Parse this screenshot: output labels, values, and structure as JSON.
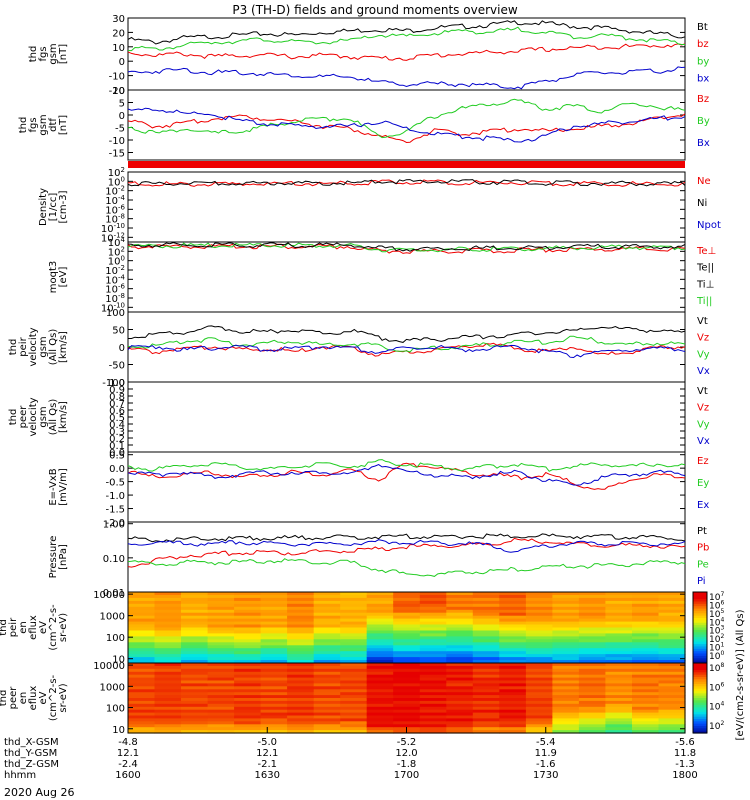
{
  "title": "P3 (TH-D) fields and ground moments overview",
  "date_label": "2020 Aug 26",
  "colors": {
    "black": "#000000",
    "red": "#ee0000",
    "green": "#22cc22",
    "blue": "#0000cc"
  },
  "time_axis": {
    "start": 1600,
    "end": 1800,
    "rows": [
      {
        "label": "thd_X-GSM",
        "values": [
          "-4.8",
          "-5.0",
          "-5.2",
          "-5.4",
          "-5.6"
        ]
      },
      {
        "label": "thd_Y-GSM",
        "values": [
          "12.1",
          "12.1",
          "12.0",
          "11.9",
          "11.8"
        ]
      },
      {
        "label": "thd_Z-GSM",
        "values": [
          "-2.4",
          "-2.1",
          "-1.8",
          "-1.6",
          "-1.3"
        ]
      },
      {
        "label": "hhmm",
        "values": [
          "1600",
          "1630",
          "1700",
          "1730",
          "1800"
        ]
      }
    ]
  },
  "top_tick_labels": [
    "-4.8",
    "-5.0",
    "-5.2",
    "-5.4",
    "-5.6"
  ],
  "colorbar": {
    "label": "[eV/(cm2-s-sr-eV)] (All Qs)",
    "upper_ticks": [
      "10^7",
      "10^6",
      "10^5",
      "10^4",
      "10^3",
      "10^2",
      "10^1",
      "10^0"
    ],
    "lower_ticks": [
      "10^8",
      "10^6",
      "10^4",
      "10^2"
    ]
  },
  "chart_data": [
    {
      "type": "line",
      "title": "thd fgs gsm [nT]",
      "ylabel_lines": [
        "thd",
        "fgs",
        "gsm",
        "[nT]"
      ],
      "ylim": [
        -20,
        30
      ],
      "yticks": [
        "30",
        "20",
        "10",
        "0",
        "-10",
        "-20"
      ],
      "yvals": [
        30,
        20,
        10,
        0,
        -10,
        -20
      ],
      "legend": [
        "Bt",
        "bz",
        "by",
        "bx"
      ],
      "series": [
        {
          "name": "Bt",
          "color": "black",
          "values": [
            16,
            14,
            17,
            18,
            19,
            20,
            19,
            21,
            22,
            23,
            22,
            24,
            25,
            26,
            28,
            27,
            25,
            24,
            22,
            20,
            18
          ]
        },
        {
          "name": "bz",
          "color": "red",
          "values": [
            7,
            5,
            6,
            4,
            5,
            5,
            4,
            5,
            4,
            3,
            3,
            5,
            6,
            7,
            8,
            9,
            10,
            11,
            11,
            12,
            12
          ]
        },
        {
          "name": "by",
          "color": "green",
          "values": [
            10,
            9,
            12,
            14,
            15,
            16,
            14,
            14,
            15,
            19,
            18,
            20,
            22,
            21,
            23,
            21,
            18,
            19,
            17,
            15,
            13
          ]
        },
        {
          "name": "bx",
          "color": "blue",
          "values": [
            -7,
            -6,
            -5,
            -7,
            -7,
            -8,
            -9,
            -10,
            -10,
            -14,
            -15,
            -15,
            -15,
            -16,
            -17,
            -13,
            -9,
            -7,
            -7,
            -6,
            -4
          ]
        }
      ]
    },
    {
      "type": "line",
      "title": "thd fgs gsm dtf [nT]",
      "ylabel_lines": [
        "thd",
        "fgs",
        "gsm",
        "dtf",
        "[nT]"
      ],
      "ylim": [
        -18,
        10
      ],
      "yticks": [
        "10",
        "5",
        "0",
        "-5",
        "-10",
        "-15"
      ],
      "yvals": [
        10,
        5,
        0,
        -5,
        -10,
        -15
      ],
      "legend": [
        "Bz",
        "By",
        "Bx"
      ],
      "series": [
        {
          "name": "Bz",
          "color": "red",
          "values": [
            -2,
            -4,
            -3,
            -1,
            0,
            -1,
            -2,
            -4,
            -5,
            -8,
            -10,
            -6,
            -7,
            -6,
            -5,
            -6,
            -5,
            -4,
            -3,
            -1,
            1
          ]
        },
        {
          "name": "By",
          "color": "green",
          "values": [
            -4,
            -7,
            -5,
            -7,
            -6,
            -4,
            -2,
            -1,
            -1,
            -8,
            -6,
            0,
            3,
            5,
            6,
            3,
            4,
            2,
            5,
            4,
            2
          ]
        },
        {
          "name": "Bx",
          "color": "blue",
          "values": [
            2,
            3,
            1,
            1,
            -2,
            -3,
            -4,
            -4,
            -4,
            -2,
            -5,
            -7,
            -8,
            -9,
            -10,
            -8,
            -4,
            -3,
            -2,
            -1,
            0
          ]
        }
      ]
    },
    {
      "type": "line",
      "title": "Density [1/cc] [cm-3]",
      "ylabel_lines": [
        "Density",
        "[1/cc]",
        "[cm-3]"
      ],
      "ylim_log": [
        -13,
        2
      ],
      "yticks": [
        "10^2",
        "10^0",
        "10^-2",
        "10^-4",
        "10^-6",
        "10^-8",
        "10^-10",
        "10^-12"
      ],
      "yvals": [
        2,
        0,
        -2,
        -4,
        -6,
        -8,
        -10,
        -12
      ],
      "legend": [
        "Ne",
        "Ni",
        "Npot"
      ],
      "series": [
        {
          "name": "Ne",
          "color": "red",
          "values": [
            -0.3,
            -0.3,
            -0.3,
            -0.3,
            -0.3,
            -0.2,
            -0.2,
            -0.2,
            -0.2,
            0.1,
            0.1,
            0.1,
            0.0,
            0.0,
            0.0,
            -0.2,
            -0.2,
            -0.3,
            -0.3,
            -0.4,
            -0.4
          ]
        },
        {
          "name": "Ni",
          "color": "black",
          "values": [
            -0.2,
            -0.2,
            -0.2,
            -0.2,
            -0.2,
            -0.1,
            -0.1,
            -0.1,
            -0.1,
            0.2,
            0.2,
            0.2,
            0.1,
            0.1,
            0.1,
            -0.1,
            -0.1,
            -0.2,
            -0.2,
            -0.3,
            -0.3
          ]
        }
      ]
    },
    {
      "type": "line",
      "title": "moqt3 [eV]",
      "ylabel_lines": [
        "moqt3",
        "[eV]"
      ],
      "ylim_log": [
        -11,
        4
      ],
      "yticks": [
        "10^4",
        "10^2",
        "10^0",
        "10^-2",
        "10^-4",
        "10^-6",
        "10^-8",
        "10^-10"
      ],
      "yvals": [
        4,
        2,
        0,
        -2,
        -4,
        -6,
        -8,
        -10
      ],
      "legend": [
        "Te⊥",
        "Te||",
        "Ti⊥",
        "Ti||"
      ],
      "series": [
        {
          "name": "Te⊥",
          "color": "red",
          "values": [
            3.3,
            3.3,
            3.3,
            3.3,
            3.3,
            3.3,
            3.3,
            3.3,
            3.3,
            2.4,
            2.3,
            2.3,
            2.4,
            2.4,
            2.5,
            2.6,
            2.7,
            2.8,
            2.8,
            2.8,
            2.8
          ]
        },
        {
          "name": "Ti||",
          "color": "green",
          "values": [
            3.5,
            3.5,
            3.5,
            3.5,
            3.5,
            3.5,
            3.5,
            3.5,
            3.5,
            2.7,
            2.6,
            2.6,
            2.7,
            2.7,
            2.8,
            2.9,
            3.0,
            3.1,
            3.1,
            3.1,
            3.1
          ]
        },
        {
          "name": "Te||",
          "color": "black",
          "values": [
            3.6,
            3.6,
            3.6,
            3.6,
            3.6,
            3.6,
            3.6,
            3.6,
            3.6,
            2.9,
            2.8,
            2.8,
            2.9,
            2.9,
            3.0,
            3.1,
            3.2,
            3.3,
            3.3,
            3.3,
            3.3
          ]
        }
      ]
    },
    {
      "type": "line",
      "title": "thd peir velocity gsm (All Qs) [km/s]",
      "ylabel_lines": [
        "thd",
        "peir",
        "velocity",
        "gsm",
        "(All Qs)",
        "[km/s]"
      ],
      "ylim": [
        -100,
        100
      ],
      "yticks": [
        "100",
        "50",
        "0",
        "-50",
        "-100"
      ],
      "yvals": [
        100,
        50,
        0,
        -50,
        -100
      ],
      "legend": [
        "Vt",
        "Vz",
        "Vy",
        "Vx"
      ],
      "series": [
        {
          "name": "Vt",
          "color": "black",
          "values": [
            30,
            40,
            45,
            60,
            50,
            45,
            55,
            40,
            50,
            30,
            20,
            25,
            30,
            35,
            40,
            45,
            50,
            60,
            55,
            50,
            45
          ]
        },
        {
          "name": "Vz",
          "color": "red",
          "values": [
            -5,
            -10,
            0,
            5,
            -5,
            0,
            -10,
            5,
            0,
            -20,
            -10,
            -5,
            5,
            10,
            0,
            -10,
            5,
            -20,
            -10,
            0,
            5
          ]
        },
        {
          "name": "Vy",
          "color": "green",
          "values": [
            10,
            5,
            20,
            25,
            10,
            15,
            20,
            10,
            15,
            5,
            -5,
            0,
            5,
            10,
            20,
            15,
            30,
            20,
            10,
            15,
            10
          ]
        },
        {
          "name": "Vx",
          "color": "blue",
          "values": [
            0,
            5,
            -5,
            0,
            5,
            -5,
            0,
            5,
            0,
            -10,
            0,
            5,
            -5,
            0,
            5,
            -10,
            -20,
            -10,
            -5,
            0,
            -5
          ]
        }
      ]
    },
    {
      "type": "line",
      "title": "thd peer velocity gsm (All Qs) [km/s]",
      "ylabel_lines": [
        "thd",
        "peer",
        "velocity",
        "gsm",
        "(All Qs)",
        "[km/s]"
      ],
      "ylim": [
        0,
        1
      ],
      "yticks": [
        "1.0",
        "0.9",
        "0.8",
        "0.7",
        "0.6",
        "0.5",
        "0.4",
        "0.3",
        "0.2",
        "0.1",
        "0.0"
      ],
      "yvals": [
        1.0,
        0.9,
        0.8,
        0.7,
        0.6,
        0.5,
        0.4,
        0.3,
        0.2,
        0.1,
        0.0
      ],
      "legend": [
        "Vt",
        "Vz",
        "Vy",
        "Vx"
      ],
      "series": []
    },
    {
      "type": "line",
      "title": "E=-VxB [mV/m]",
      "ylabel_lines": [
        "E=-VxB",
        "[mV/m]"
      ],
      "ylim": [
        -2,
        0.6
      ],
      "yticks": [
        "0.5",
        "0.0",
        "-0.5",
        "-1.0",
        "-1.5",
        "-2.0"
      ],
      "yvals": [
        0.5,
        0,
        -0.5,
        -1,
        -1.5,
        -2
      ],
      "legend": [
        "Ez",
        "Ey",
        "Ex"
      ],
      "series": [
        {
          "name": "Ez",
          "color": "red",
          "values": [
            -0.1,
            -0.3,
            -0.2,
            -0.1,
            -0.3,
            -0.2,
            -0.1,
            -0.2,
            0.0,
            -0.4,
            0.2,
            0.1,
            -0.1,
            -0.2,
            -0.3,
            -0.2,
            -0.5,
            -0.8,
            -0.4,
            -0.2,
            -0.3
          ]
        },
        {
          "name": "Ey",
          "color": "green",
          "values": [
            0.1,
            0.0,
            0.1,
            0.2,
            0.1,
            0.0,
            0.1,
            0.2,
            0.1,
            0.3,
            0.2,
            0.1,
            0.0,
            0.1,
            0.2,
            0.0,
            0.1,
            0.2,
            0.1,
            0.2,
            0.1
          ]
        },
        {
          "name": "Ex",
          "color": "blue",
          "values": [
            -0.1,
            -0.2,
            -0.1,
            -0.3,
            -0.2,
            -0.1,
            -0.2,
            -0.1,
            -0.2,
            0.2,
            -0.1,
            -0.2,
            -0.3,
            -0.2,
            -0.1,
            -0.4,
            -0.6,
            -0.3,
            -0.2,
            -0.1,
            -0.2
          ]
        }
      ]
    },
    {
      "type": "line",
      "title": "Pressure [nPa]",
      "ylabel_lines": [
        "Pressure",
        "[nPa]"
      ],
      "ylim_log": [
        -2,
        0.05
      ],
      "yticks": [
        "1.00",
        "0.10",
        "0.01"
      ],
      "yvals": [
        0,
        -1,
        -2
      ],
      "legend": [
        "Pt",
        "Pb",
        "Pe",
        "Pi"
      ],
      "series": [
        {
          "name": "Pt",
          "color": "black",
          "values": [
            -0.4,
            -0.45,
            -0.42,
            -0.4,
            -0.4,
            -0.38,
            -0.38,
            -0.37,
            -0.36,
            -0.34,
            -0.33,
            -0.34,
            -0.33,
            -0.33,
            -0.32,
            -0.33,
            -0.34,
            -0.35,
            -0.36,
            -0.38,
            -0.4
          ]
        },
        {
          "name": "Pb",
          "color": "red",
          "values": [
            -1.2,
            -1.05,
            -0.9,
            -0.85,
            -0.82,
            -0.8,
            -0.82,
            -0.78,
            -0.76,
            -0.7,
            -0.65,
            -0.62,
            -0.6,
            -0.58,
            -0.45,
            -0.5,
            -0.55,
            -0.6,
            -0.6,
            -0.62,
            -0.65
          ]
        },
        {
          "name": "Pe",
          "color": "green",
          "values": [
            -1.1,
            -1.15,
            -1.1,
            -1.1,
            -1.1,
            -1.05,
            -1.05,
            -1.1,
            -1.1,
            -1.3,
            -1.45,
            -1.45,
            -1.4,
            -1.35,
            -1.3,
            -1.25,
            -1.2,
            -1.2,
            -1.15,
            -1.1,
            -1.1
          ]
        },
        {
          "name": "Pi",
          "color": "blue",
          "values": [
            -0.55,
            -0.5,
            -0.55,
            -0.55,
            -0.5,
            -0.55,
            -0.55,
            -0.55,
            -0.55,
            -0.5,
            -0.5,
            -0.52,
            -0.55,
            -0.6,
            -0.8,
            -0.6,
            -0.55,
            -0.55,
            -0.55,
            -0.55,
            -0.55
          ]
        }
      ]
    },
    {
      "type": "heatmap",
      "title": "thd peir en eflux",
      "ylabel_lines": [
        "thd",
        "peir",
        "en",
        "eflux",
        "eV",
        "(cm^2-s-",
        "sr-eV)"
      ],
      "yticks": [
        "10000",
        "1000",
        "100",
        "10"
      ],
      "yvals": [
        4,
        3,
        2,
        1
      ],
      "ylim_log": [
        0.8,
        4.1
      ],
      "columns": [
        6.3,
        6.4,
        6.2,
        6.3,
        6.4,
        6.3,
        6.5,
        6.2,
        6.1,
        6.3,
        6.8,
        6.9,
        6.6,
        6.7,
        6.8,
        6.5,
        6.3,
        6.4,
        6.2,
        6.3,
        6.2
      ],
      "cutoff_energy_log": [
        2.6,
        2.5,
        2.6,
        2.5,
        2.5,
        2.6,
        2.5,
        2.6,
        2.5,
        3.2,
        3.3,
        3.4,
        3.3,
        3.2,
        3.1,
        2.9,
        2.8,
        2.9,
        2.8,
        2.9,
        2.8
      ]
    },
    {
      "type": "heatmap",
      "title": "thd peer en eflux",
      "ylabel_lines": [
        "thd",
        "peer",
        "en",
        "eflux",
        "eV",
        "(cm^2-s-",
        "sr-eV)"
      ],
      "yticks": [
        "10000",
        "1000",
        "100",
        "10"
      ],
      "yvals": [
        4,
        3,
        2,
        1
      ],
      "ylim_log": [
        0.8,
        4.1
      ],
      "columns": [
        7.0,
        7.1,
        7.0,
        7.0,
        7.1,
        7.0,
        7.1,
        7.0,
        7.0,
        7.4,
        7.5,
        7.4,
        7.3,
        7.2,
        7.3,
        7.0,
        6.6,
        6.7,
        6.5,
        6.6,
        6.6
      ],
      "cutoff_energy_log": [
        1.4,
        1.4,
        1.4,
        1.4,
        1.4,
        1.4,
        1.4,
        1.4,
        1.4,
        1.2,
        1.2,
        1.2,
        1.2,
        1.3,
        1.3,
        1.5,
        1.9,
        2.1,
        2.2,
        2.0,
        2.1
      ]
    }
  ]
}
